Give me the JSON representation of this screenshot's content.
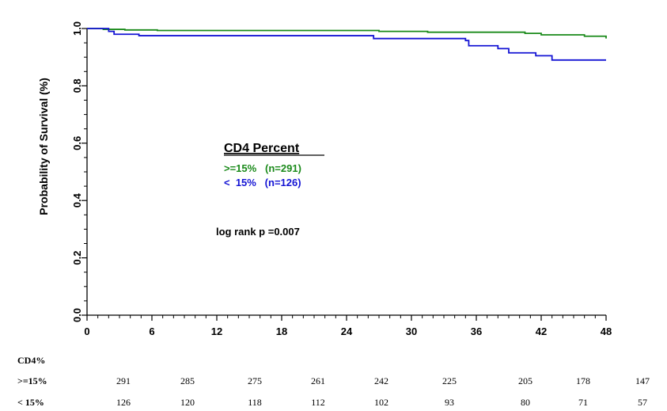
{
  "chart_data": {
    "type": "line",
    "subtype": "kaplan-meier-step",
    "ylabel": "Probability of Survival (%)",
    "xlabel": "",
    "xlim": [
      0,
      48
    ],
    "ylim": [
      0.0,
      1.0
    ],
    "x_ticks": [
      0,
      6,
      12,
      18,
      24,
      30,
      36,
      42,
      48
    ],
    "y_ticks": [
      "0.0",
      "0.2",
      "0.4",
      "0.6",
      "0.8",
      "1.0"
    ],
    "grid": false,
    "colors": {
      "high": "#1a8a1a",
      "low": "#1414d4"
    },
    "series": [
      {
        "key": "high",
        "steps": [
          [
            0,
            1.0
          ],
          [
            1.5,
            0.997
          ],
          [
            3.5,
            0.995
          ],
          [
            6.5,
            0.993
          ],
          [
            27,
            0.99
          ],
          [
            31.5,
            0.987
          ],
          [
            40.5,
            0.983
          ],
          [
            42,
            0.978
          ],
          [
            46,
            0.973
          ],
          [
            48,
            0.965
          ]
        ]
      },
      {
        "key": "low",
        "steps": [
          [
            0,
            1.0
          ],
          [
            2,
            0.99
          ],
          [
            2.5,
            0.98
          ],
          [
            4.8,
            0.975
          ],
          [
            26.5,
            0.965
          ],
          [
            35,
            0.958
          ],
          [
            35.3,
            0.94
          ],
          [
            38,
            0.93
          ],
          [
            39,
            0.915
          ],
          [
            41.5,
            0.905
          ],
          [
            43,
            0.89
          ],
          [
            48,
            0.89
          ]
        ]
      }
    ],
    "legend": {
      "title": "CD4 Percent",
      "placement": "center-left",
      "entries": [
        {
          "key": "high",
          "label": ">=15%   (n=291)"
        },
        {
          "key": "low",
          "label": "<  15%   (n=126)"
        }
      ]
    },
    "annotation": "log rank p =0.007",
    "risk_table": {
      "header": "CD4%",
      "rows": [
        {
          "label": ">=15%",
          "values": [
            "291",
            "285",
            "275",
            "261",
            "242",
            "225",
            "205",
            "178",
            "147"
          ]
        },
        {
          "label": "< 15%",
          "values": [
            "126",
            "120",
            "118",
            "112",
            "102",
            "93",
            "80",
            "71",
            "57"
          ]
        }
      ]
    }
  }
}
